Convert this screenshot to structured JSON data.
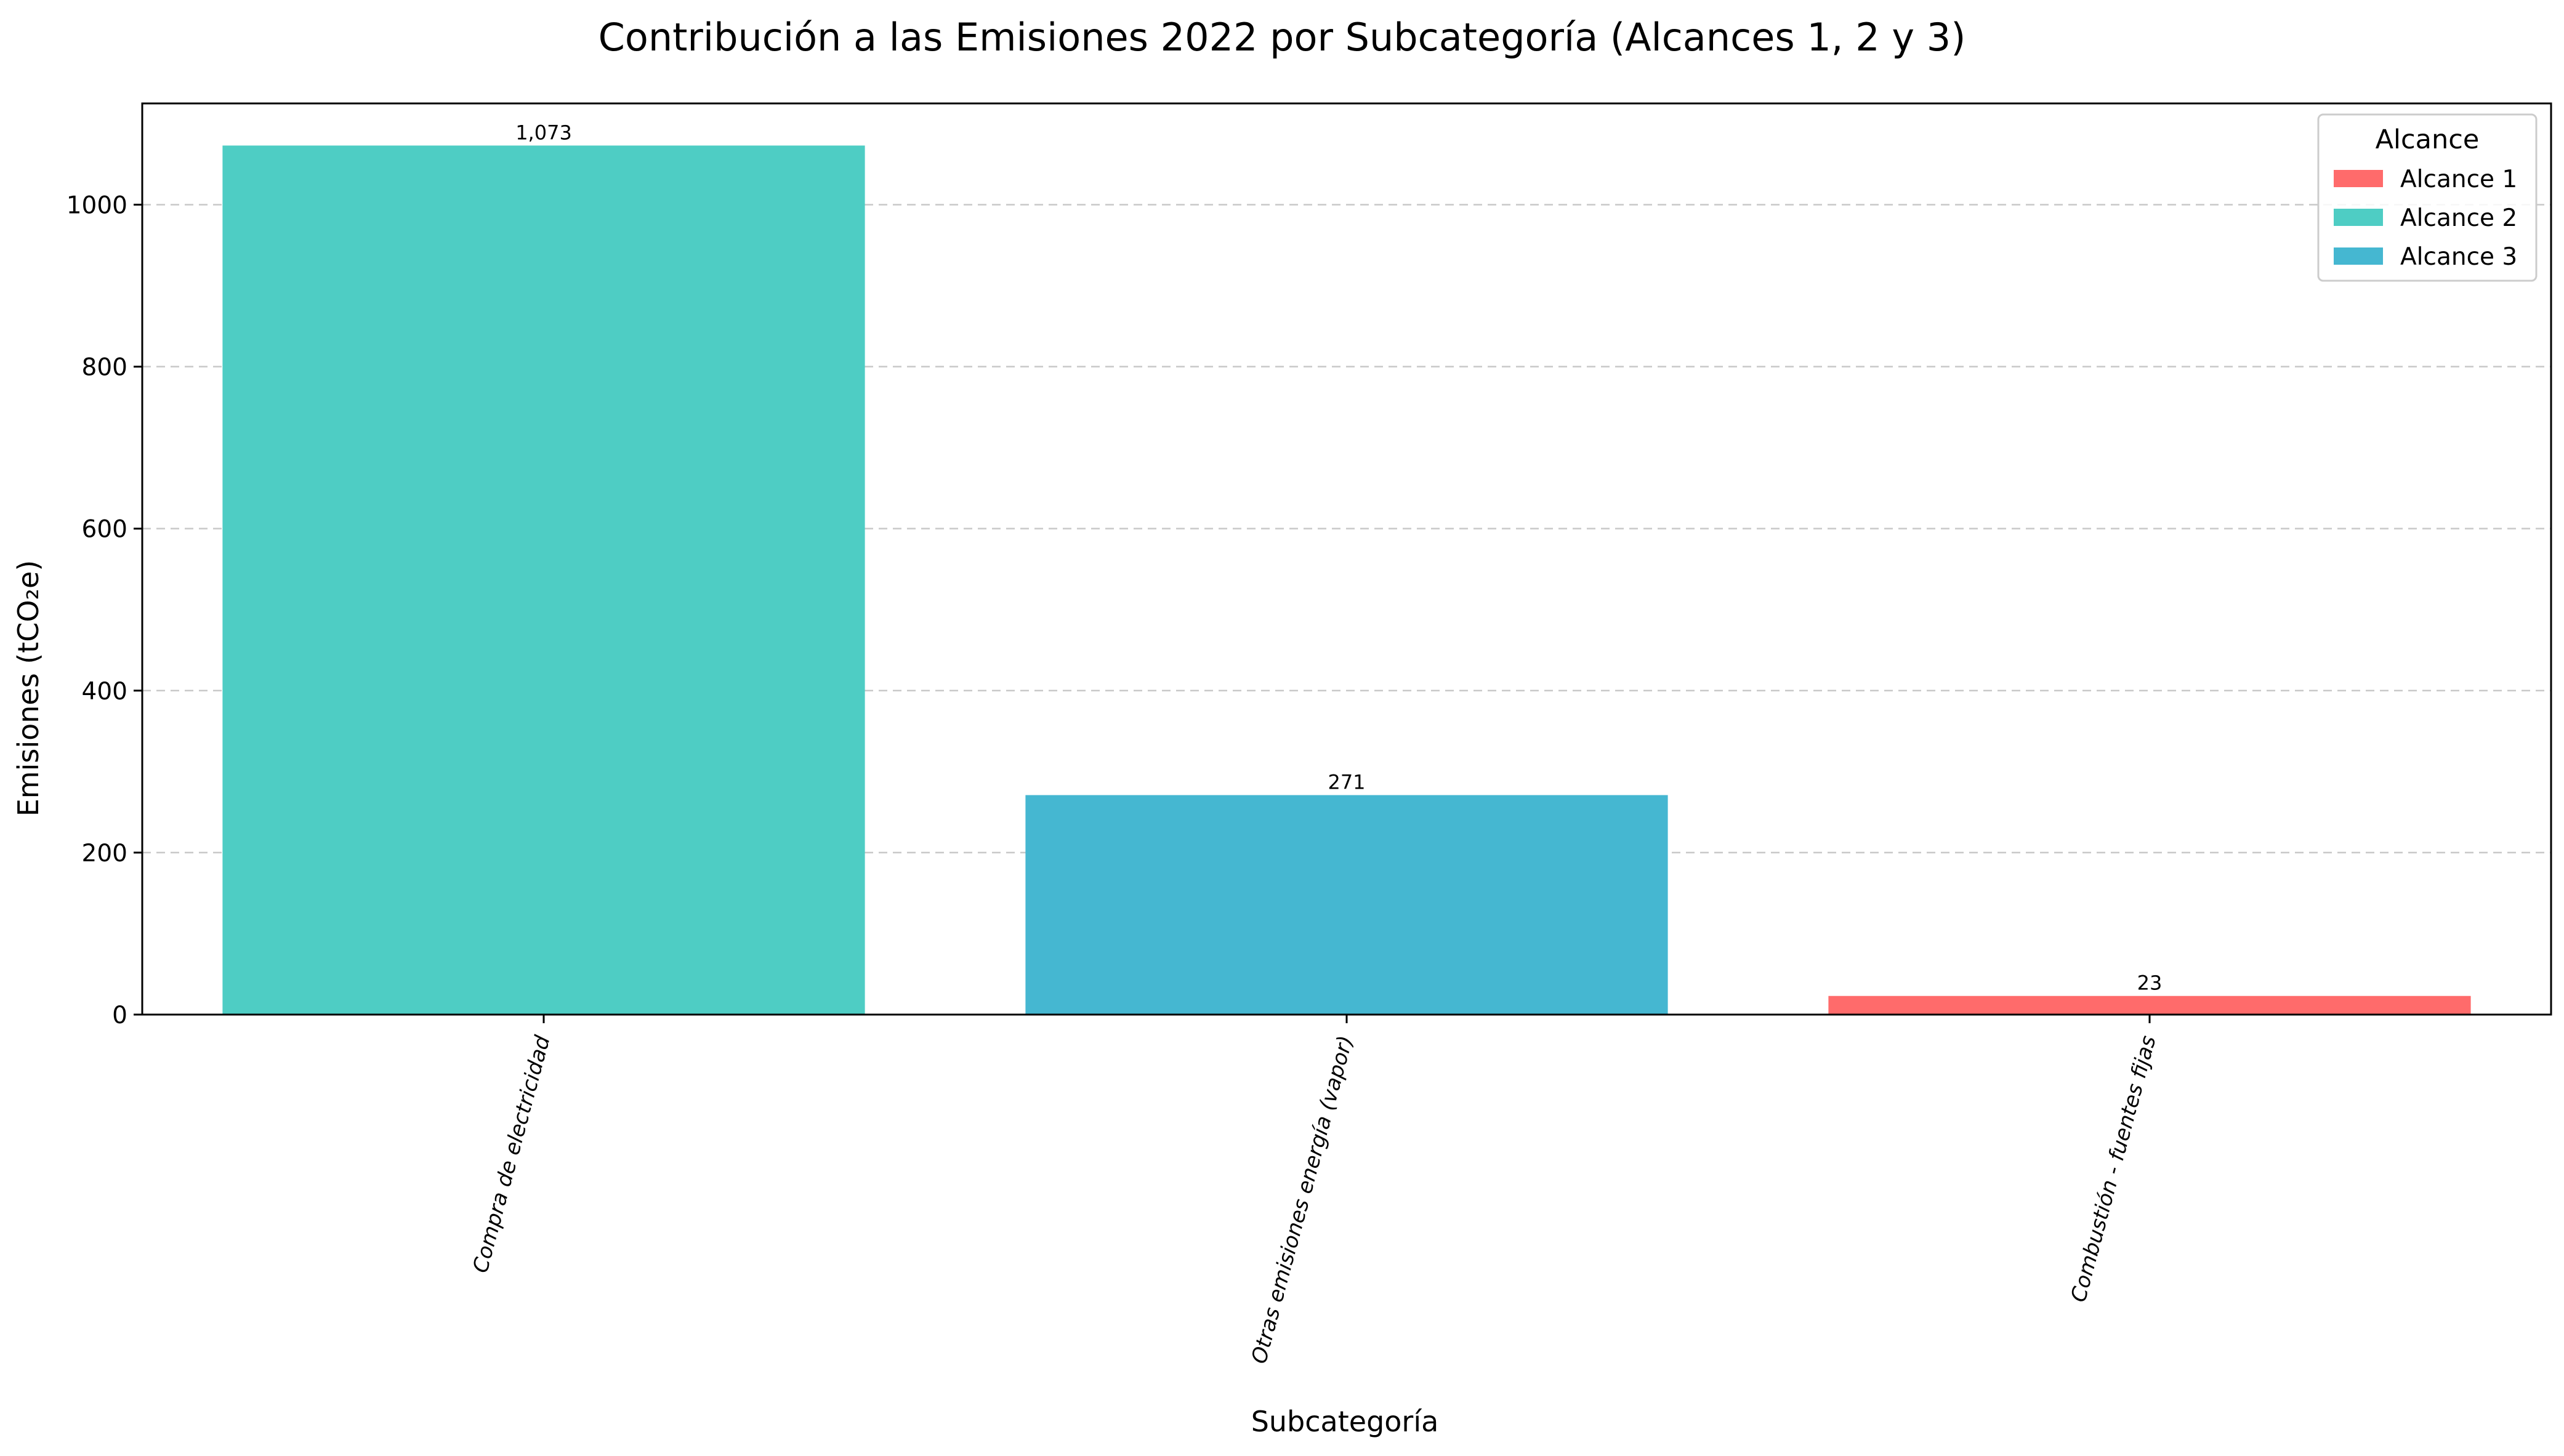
{
  "chart_data": {
    "type": "bar",
    "title": "Contribución a las Emisiones 2022 por Subcategoría (Alcances 1, 2 y 3)",
    "xlabel": "Subcategoría",
    "ylabel": "Emisiones (tCO₂e)",
    "ylim": [
      0,
      1125
    ],
    "yticks": [
      0,
      200,
      400,
      600,
      800,
      1000
    ],
    "grid": true,
    "categories": [
      "Compra de electricidad",
      "Otras emisiones energía (vapor)",
      "Combustión - fuentes fijas"
    ],
    "values": [
      1073,
      271,
      23
    ],
    "value_labels": [
      "1,073",
      "271",
      "23"
    ],
    "bar_scope": [
      "Alcance 2",
      "Alcance 3",
      "Alcance 1"
    ],
    "legend": {
      "title": "Alcance",
      "placement": "top-right",
      "entries": [
        {
          "name": "Alcance 1",
          "color": "#ff6b6b"
        },
        {
          "name": "Alcance 2",
          "color": "#4ecdc4"
        },
        {
          "name": "Alcance 3",
          "color": "#45b7d1"
        }
      ]
    }
  }
}
